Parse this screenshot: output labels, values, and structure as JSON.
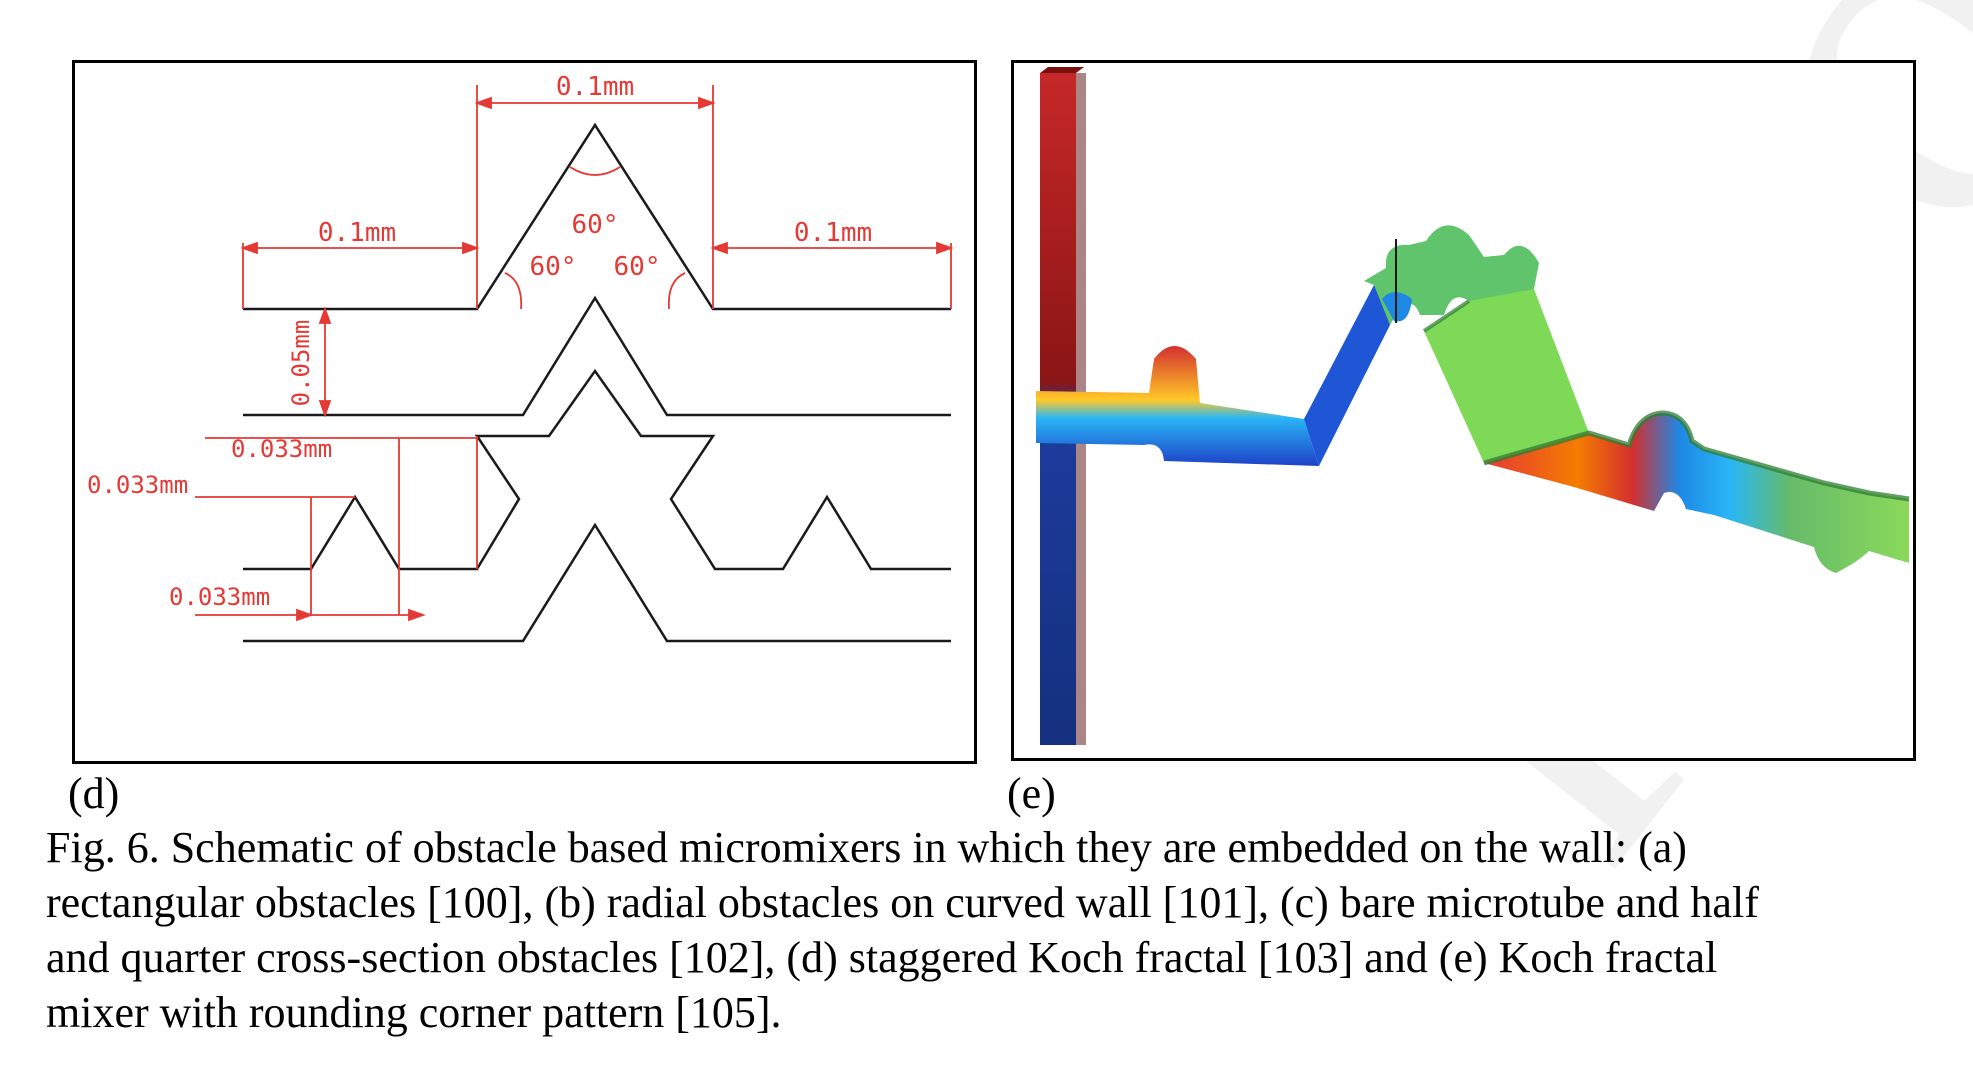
{
  "watermark": "proof",
  "panels": {
    "d": {
      "label": "(d)",
      "dimensions": {
        "width_top": "0.1mm",
        "width_left": "0.1mm",
        "width_right": "0.1mm",
        "angle_top": "60°",
        "angle_left": "60°",
        "angle_right": "60°",
        "gap": "0.05mm",
        "koch_height": "0.033mm",
        "koch_left": "0.033mm",
        "koch_base": "0.033mm"
      },
      "colors": {
        "line": "#1a1a1a",
        "dimension": "#e53935"
      }
    },
    "e": {
      "label": "(e)",
      "colors": {
        "inlet_top": "#b71c1c",
        "inlet_bottom": "#1a3a9c",
        "mixed": "#7ed957"
      }
    }
  },
  "caption": {
    "lines": [
      "Fig. 6. Schematic of obstacle based micromixers in which they are embedded on the wall:  (a)",
      "rectangular obstacles [100], (b) radial obstacles on curved wall [101], (c) bare microtube and half",
      "and quarter cross-section obstacles [102], (d) staggered Koch fractal [103] and (e) Koch fractal",
      "mixer with rounding corner pattern [105]."
    ]
  }
}
